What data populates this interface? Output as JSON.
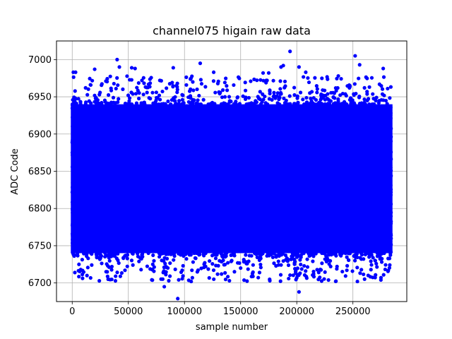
{
  "chart_data": {
    "type": "scatter",
    "title": "channel075 higain raw data",
    "xlabel": "sample number",
    "ylabel": "ADC Code",
    "xlim": [
      -14000,
      298000
    ],
    "ylim": [
      6675,
      7025
    ],
    "x_ticks": [
      0,
      50000,
      100000,
      150000,
      200000,
      250000
    ],
    "y_ticks": [
      6700,
      6750,
      6800,
      6850,
      6900,
      6950,
      7000
    ],
    "grid": true,
    "series": [
      {
        "color": "#0000ff",
        "x_range": [
          0,
          284000
        ],
        "dense_band": [
          6740,
          6940
        ],
        "mean": 6840,
        "outliers": [
          {
            "x": 1000,
            "y": 6983
          },
          {
            "x": 3000,
            "y": 6983
          },
          {
            "x": 20000,
            "y": 6987
          },
          {
            "x": 40000,
            "y": 7000
          },
          {
            "x": 42000,
            "y": 6990
          },
          {
            "x": 53000,
            "y": 6989
          },
          {
            "x": 56000,
            "y": 6988
          },
          {
            "x": 90000,
            "y": 6989
          },
          {
            "x": 114000,
            "y": 6995
          },
          {
            "x": 126000,
            "y": 6983
          },
          {
            "x": 170000,
            "y": 6982
          },
          {
            "x": 175000,
            "y": 6982
          },
          {
            "x": 186000,
            "y": 6990
          },
          {
            "x": 188000,
            "y": 6992
          },
          {
            "x": 194000,
            "y": 7011
          },
          {
            "x": 202000,
            "y": 6990
          },
          {
            "x": 208000,
            "y": 6983
          },
          {
            "x": 237000,
            "y": 6978
          },
          {
            "x": 252000,
            "y": 7005
          },
          {
            "x": 256000,
            "y": 6993
          },
          {
            "x": 277000,
            "y": 6988
          },
          {
            "x": 6000,
            "y": 6725
          },
          {
            "x": 32000,
            "y": 6705
          },
          {
            "x": 47000,
            "y": 6717
          },
          {
            "x": 82000,
            "y": 6695
          },
          {
            "x": 86000,
            "y": 6703
          },
          {
            "x": 94000,
            "y": 6679
          },
          {
            "x": 98000,
            "y": 6717
          },
          {
            "x": 107000,
            "y": 6707
          },
          {
            "x": 133000,
            "y": 6712
          },
          {
            "x": 140000,
            "y": 6703
          },
          {
            "x": 150000,
            "y": 6720
          },
          {
            "x": 176000,
            "y": 6703
          },
          {
            "x": 200000,
            "y": 6707
          },
          {
            "x": 202000,
            "y": 6688
          },
          {
            "x": 215000,
            "y": 6712
          },
          {
            "x": 254000,
            "y": 6702
          },
          {
            "x": 275000,
            "y": 6707
          }
        ]
      }
    ]
  }
}
